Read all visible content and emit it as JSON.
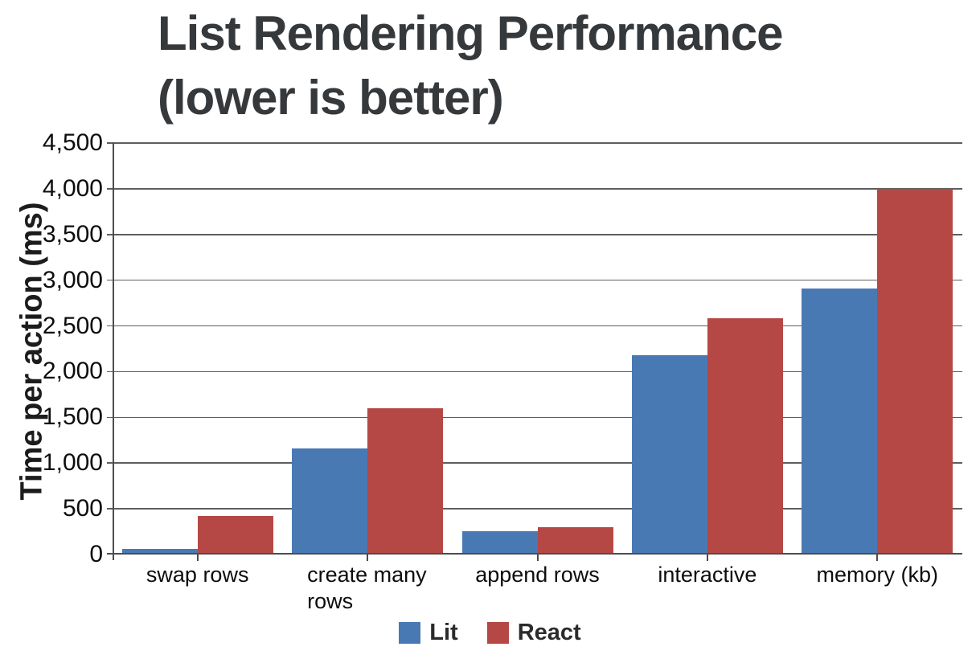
{
  "title": {
    "line1": "List Rendering Performance",
    "line2": "(lower is better)"
  },
  "chart_data": {
    "type": "bar",
    "title": "List Rendering Performance (lower is better)",
    "ylabel": "Time per action (ms)",
    "xlabel": "",
    "categories": [
      "swap rows",
      "create many rows",
      "append rows",
      "interactive",
      "memory (kb)"
    ],
    "series": [
      {
        "name": "Lit",
        "color": "#4979b3",
        "values": [
          40,
          1150,
          240,
          2170,
          2900
        ]
      },
      {
        "name": "React",
        "color": "#b54845",
        "values": [
          410,
          1590,
          280,
          2575,
          4000
        ]
      }
    ],
    "ylim": [
      0,
      4500
    ],
    "ytick_step": 500,
    "ytick_labels": [
      "0",
      "500",
      "1,000",
      "1,500",
      "2,000",
      "2,500",
      "3,000",
      "3,500",
      "4,000",
      "4,500"
    ],
    "grid": true,
    "legend_position": "bottom"
  },
  "colors": {
    "title_text": "#36393c",
    "axis_text": "#0d0d0d",
    "gridline": "#5e5e5e",
    "axis_line": "#4c4c4c",
    "background": "#ffffff"
  }
}
